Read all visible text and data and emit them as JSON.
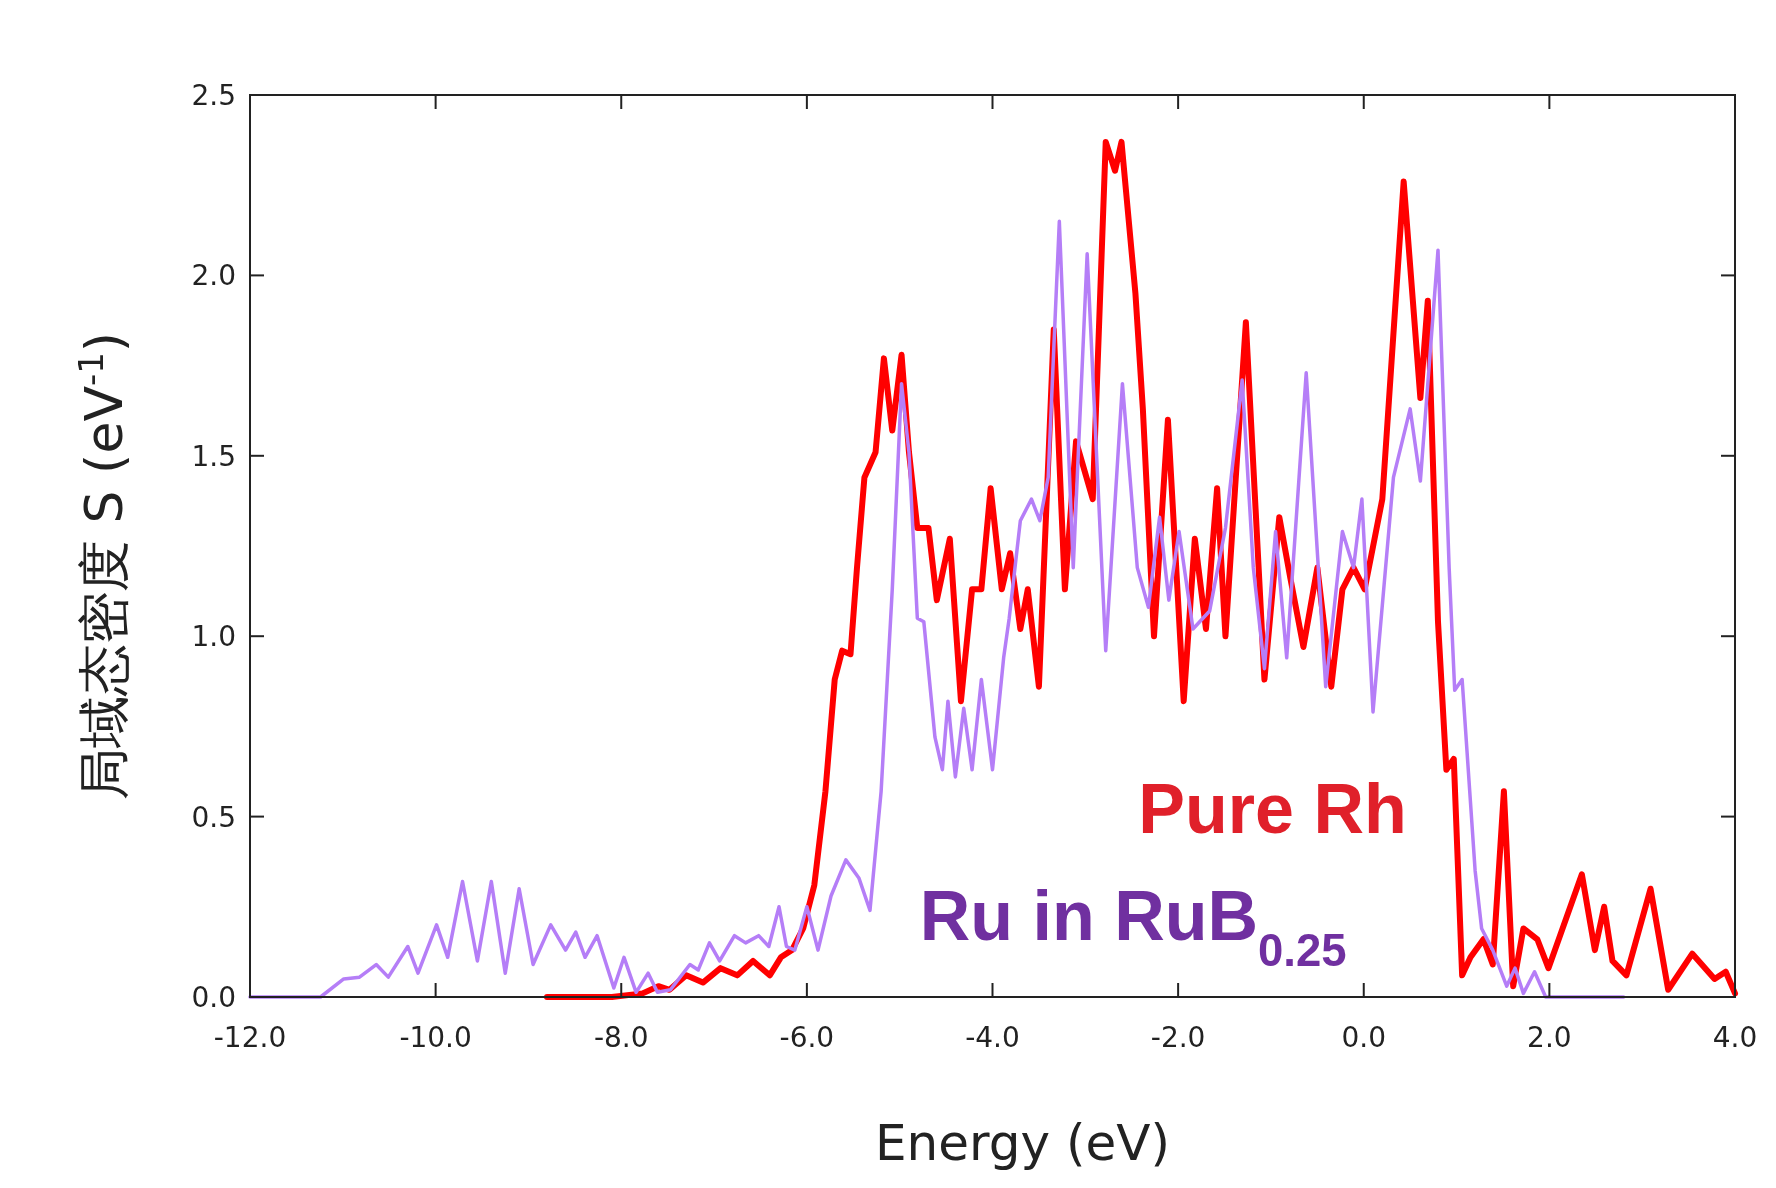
{
  "chart_data": {
    "type": "line",
    "xlabel": "Energy (eV)",
    "ylabel": "局域态密度 S (eV$^{-1}$)",
    "xlim": [
      -12,
      4
    ],
    "ylim": [
      0,
      2.5
    ],
    "xticks": [
      {
        "value": -12,
        "label": "-12.0"
      },
      {
        "value": -10,
        "label": "-10.0"
      },
      {
        "value": -8,
        "label": "-8.0"
      },
      {
        "value": -6,
        "label": "-6.0"
      },
      {
        "value": -4,
        "label": "-4.0"
      },
      {
        "value": -2,
        "label": "-2.0"
      },
      {
        "value": 0,
        "label": "0.0"
      },
      {
        "value": 2,
        "label": "2.0"
      },
      {
        "value": 4,
        "label": "4.0"
      }
    ],
    "yticks": [
      {
        "value": 0,
        "label": "0.0"
      },
      {
        "value": 0.5,
        "label": "0.5"
      },
      {
        "value": 1,
        "label": "1.0"
      },
      {
        "value": 1.5,
        "label": "1.5"
      },
      {
        "value": 2,
        "label": "2.0"
      },
      {
        "value": 2.5,
        "label": "2.5"
      }
    ],
    "grid": false,
    "marker": "none",
    "line_style": "solid",
    "series": [
      {
        "name": "Pure Rh",
        "color": "#ff0000",
        "x": [
          -8.8,
          -8.1,
          -7.77,
          -7.6,
          -7.48,
          -7.3,
          -7.12,
          -6.93,
          -6.75,
          -6.58,
          -6.4,
          -6.28,
          -6.16,
          -6.04,
          -5.92,
          -5.8,
          -5.7,
          -5.62,
          -5.53,
          -5.46,
          -5.38,
          -5.26,
          -5.17,
          -5.08,
          -4.98,
          -4.9,
          -4.81,
          -4.69,
          -4.6,
          -4.46,
          -4.34,
          -4.22,
          -4.12,
          -4.02,
          -3.9,
          -3.81,
          -3.7,
          -3.62,
          -3.5,
          -3.34,
          -3.22,
          -3.1,
          -2.92,
          -2.78,
          -2.68,
          -2.61,
          -2.46,
          -2.38,
          -2.26,
          -2.11,
          -1.94,
          -1.82,
          -1.7,
          -1.58,
          -1.49,
          -1.27,
          -1.07,
          -0.91,
          -0.79,
          -0.65,
          -0.5,
          -0.35,
          -0.23,
          -0.11,
          0.01,
          0.2,
          0.43,
          0.61,
          0.69,
          0.8,
          0.89,
          0.97,
          1.06,
          1.15,
          1.29,
          1.39,
          1.51,
          1.61,
          1.72,
          1.87,
          1.99,
          2.35,
          2.49,
          2.59,
          2.68,
          2.83,
          3.09,
          3.28,
          3.54,
          3.78,
          3.9,
          4.0
        ],
        "values": [
          0,
          0,
          0.01,
          0.03,
          0.02,
          0.06,
          0.04,
          0.08,
          0.06,
          0.1,
          0.06,
          0.11,
          0.13,
          0.19,
          0.31,
          0.57,
          0.88,
          0.96,
          0.95,
          1.19,
          1.44,
          1.51,
          1.77,
          1.57,
          1.78,
          1.51,
          1.3,
          1.3,
          1.1,
          1.27,
          0.82,
          1.13,
          1.13,
          1.41,
          1.13,
          1.23,
          1.02,
          1.13,
          0.86,
          1.85,
          1.13,
          1.54,
          1.38,
          2.37,
          2.29,
          2.37,
          1.95,
          1.63,
          1.0,
          1.6,
          0.82,
          1.27,
          1.02,
          1.41,
          1.0,
          1.87,
          0.88,
          1.33,
          1.16,
          0.97,
          1.19,
          0.86,
          1.13,
          1.19,
          1.13,
          1.38,
          2.26,
          1.66,
          1.93,
          1.04,
          0.63,
          0.66,
          0.06,
          0.11,
          0.16,
          0.09,
          0.57,
          0.03,
          0.19,
          0.16,
          0.08,
          0.34,
          0.13,
          0.25,
          0.1,
          0.06,
          0.3,
          0.02,
          0.12,
          0.05,
          0.07,
          0.01
        ]
      },
      {
        "name": "Ru in RuB$_{0.25}$",
        "color": "#b57ef7",
        "x": [
          -12,
          -11.5,
          -11.24,
          -10.99,
          -10.82,
          -10.64,
          -10.51,
          -10.3,
          -10.19,
          -9.99,
          -9.87,
          -9.71,
          -9.55,
          -9.4,
          -9.25,
          -9.1,
          -8.95,
          -8.76,
          -8.6,
          -8.49,
          -8.39,
          -8.26,
          -8.08,
          -7.97,
          -7.84,
          -7.71,
          -7.61,
          -7.47,
          -7.26,
          -7.17,
          -7.05,
          -6.94,
          -6.78,
          -6.66,
          -6.52,
          -6.41,
          -6.3,
          -6.22,
          -6.13,
          -6.0,
          -5.88,
          -5.74,
          -5.58,
          -5.44,
          -5.32,
          -5.2,
          -5.08,
          -4.98,
          -4.9,
          -4.81,
          -4.74,
          -4.62,
          -4.54,
          -4.48,
          -4.4,
          -4.31,
          -4.22,
          -4.12,
          -4.0,
          -3.88,
          -3.82,
          -3.7,
          -3.58,
          -3.49,
          -3.4,
          -3.28,
          -3.13,
          -2.98,
          -2.78,
          -2.6,
          -2.44,
          -2.32,
          -2.2,
          -2.1,
          -1.99,
          -1.84,
          -1.66,
          -1.49,
          -1.31,
          -1.19,
          -1.07,
          -0.95,
          -0.83,
          -0.62,
          -0.41,
          -0.23,
          -0.11,
          -0.02,
          0.1,
          0.32,
          0.5,
          0.61,
          0.8,
          0.92,
          0.98,
          1.06,
          1.2,
          1.27,
          1.39,
          1.54,
          1.63,
          1.72,
          1.84,
          1.96,
          2.8
        ],
        "values": [
          0,
          0,
          0,
          0.05,
          0.055,
          0.09,
          0.055,
          0.14,
          0.066,
          0.2,
          0.11,
          0.32,
          0.1,
          0.32,
          0.066,
          0.3,
          0.09,
          0.2,
          0.13,
          0.18,
          0.11,
          0.17,
          0.025,
          0.11,
          0.013,
          0.066,
          0.013,
          0.02,
          0.09,
          0.075,
          0.15,
          0.1,
          0.17,
          0.15,
          0.17,
          0.14,
          0.25,
          0.14,
          0.13,
          0.25,
          0.13,
          0.28,
          0.38,
          0.33,
          0.24,
          0.57,
          1.13,
          1.7,
          1.51,
          1.05,
          1.04,
          0.72,
          0.63,
          0.82,
          0.61,
          0.8,
          0.63,
          0.88,
          0.63,
          0.94,
          1.05,
          1.32,
          1.38,
          1.32,
          1.44,
          2.15,
          1.19,
          2.06,
          0.96,
          1.7,
          1.19,
          1.08,
          1.33,
          1.1,
          1.29,
          1.02,
          1.07,
          1.3,
          1.71,
          1.19,
          0.91,
          1.29,
          0.94,
          1.73,
          0.86,
          1.29,
          1.19,
          1.38,
          0.79,
          1.44,
          1.63,
          1.43,
          2.07,
          1.19,
          0.85,
          0.88,
          0.35,
          0.19,
          0.13,
          0.03,
          0.08,
          0.01,
          0.07,
          0,
          0
        ]
      }
    ]
  }
}
